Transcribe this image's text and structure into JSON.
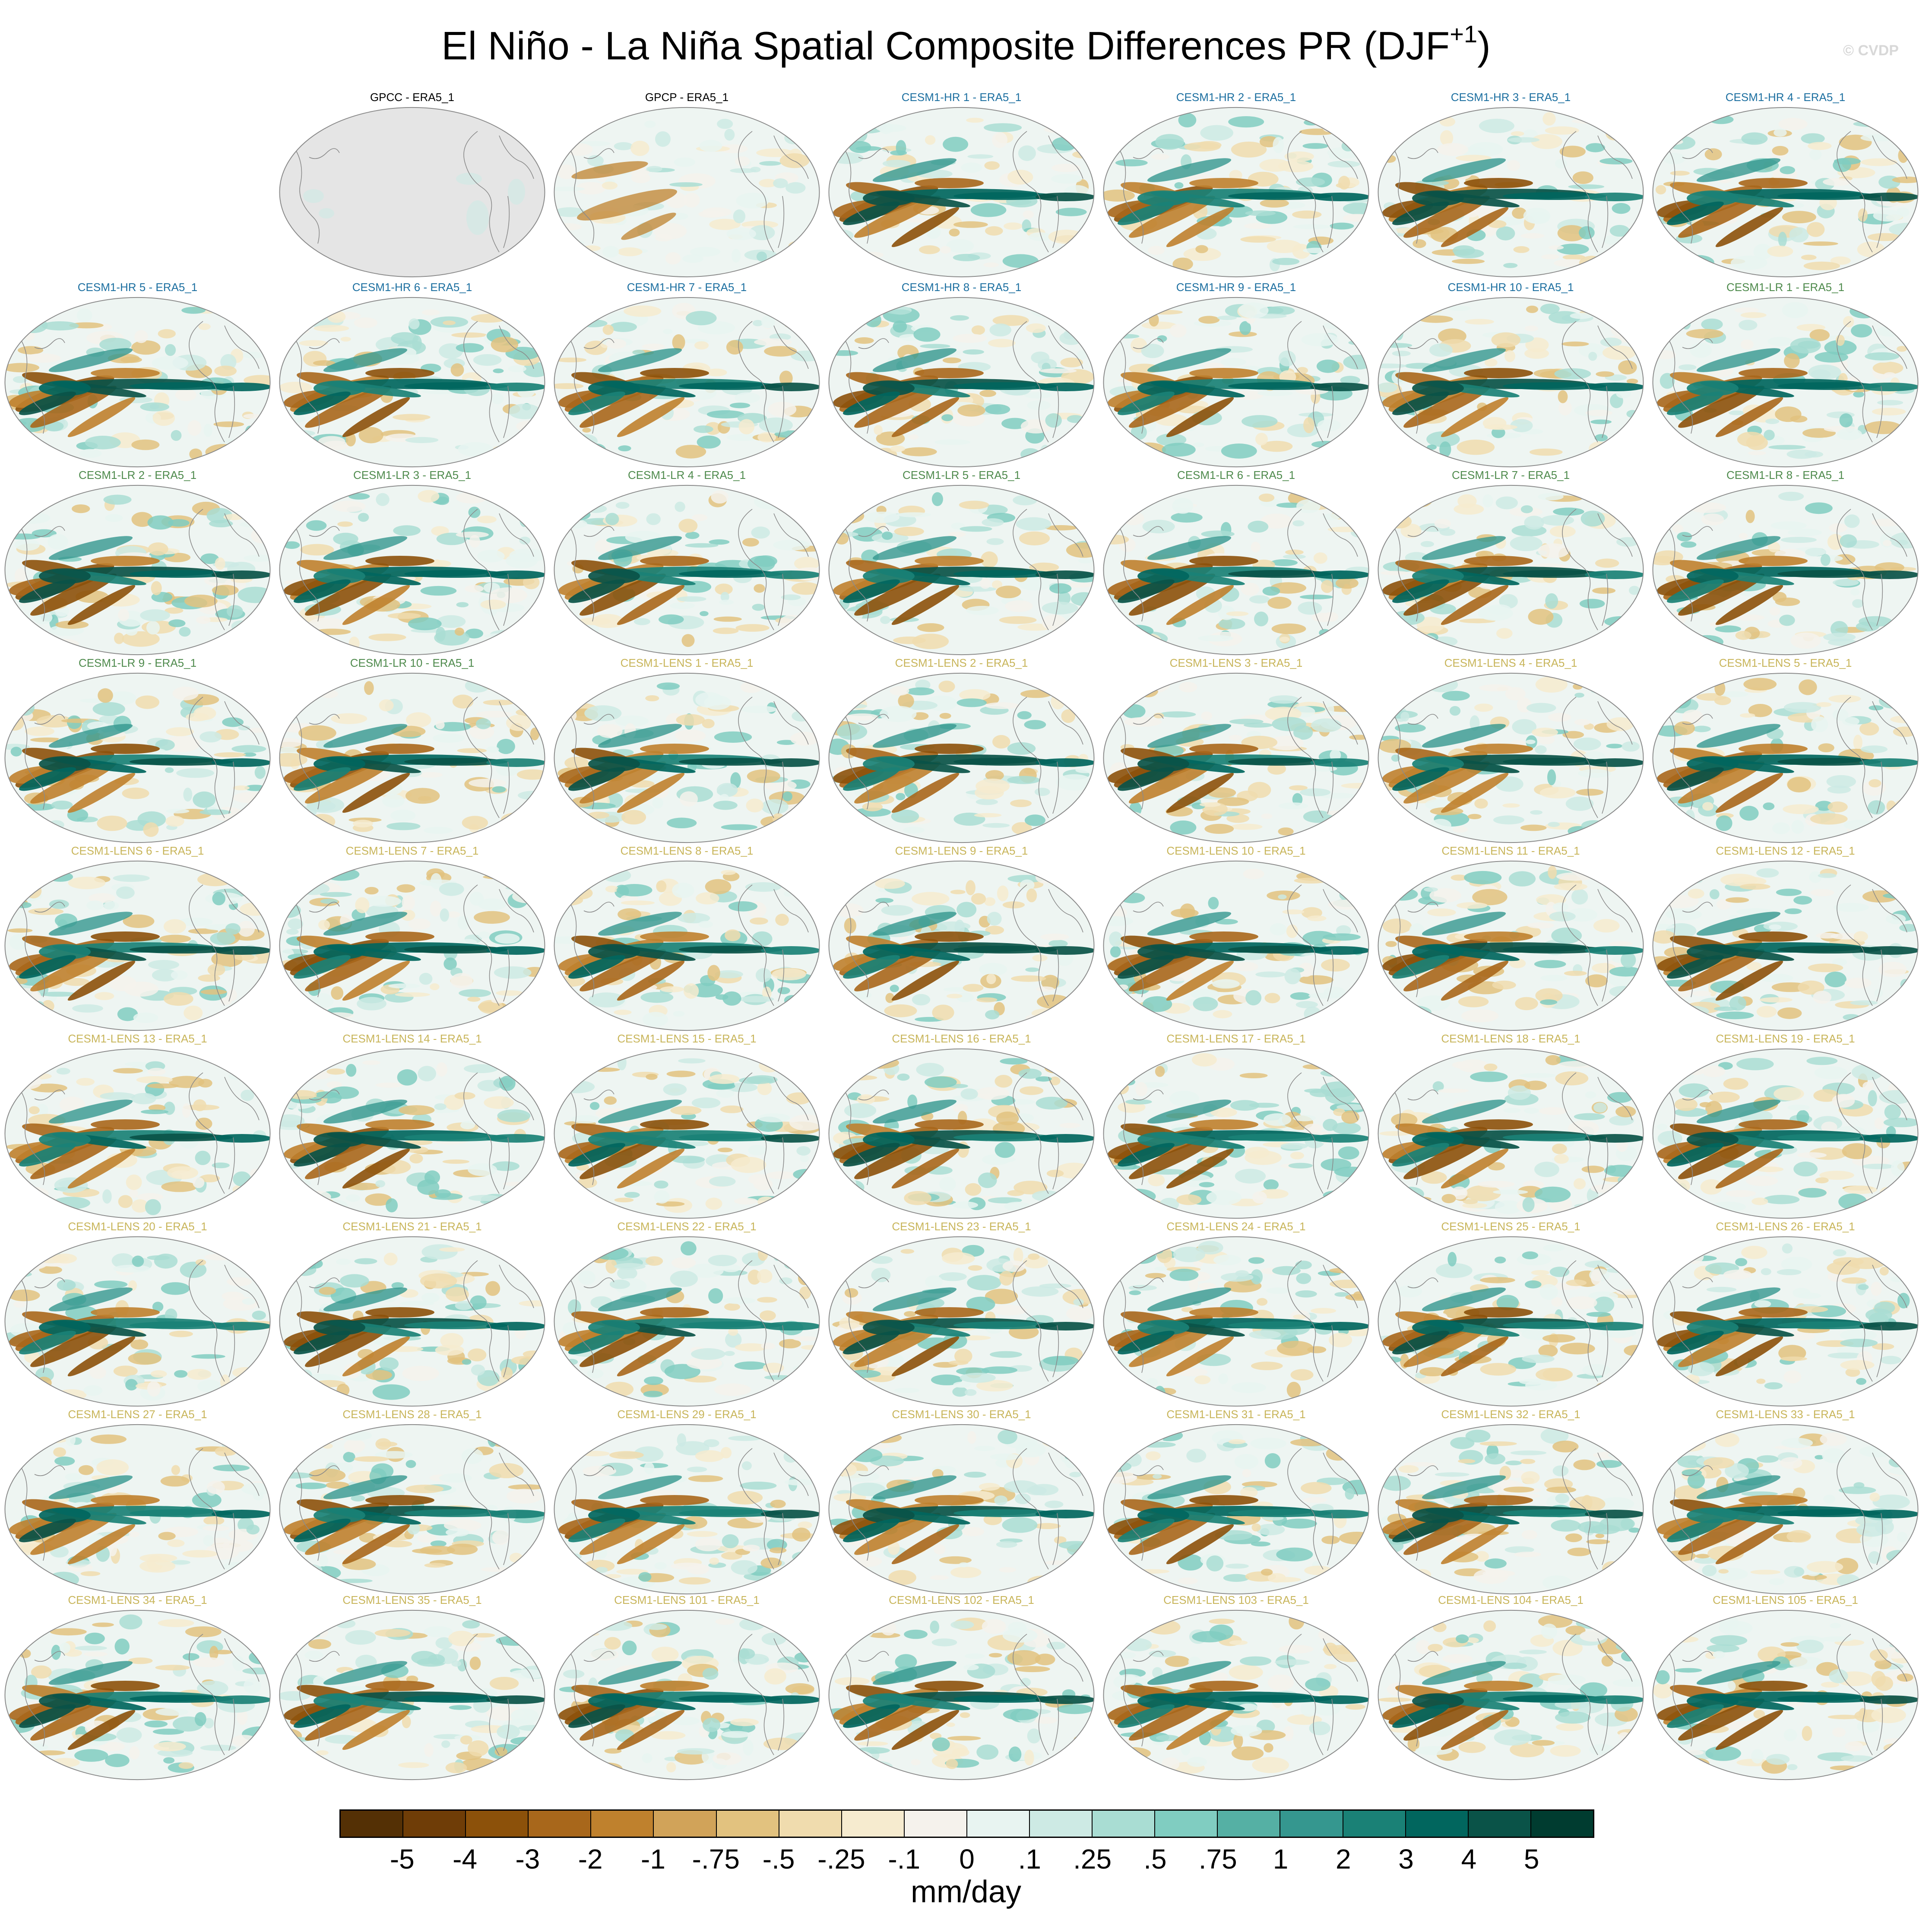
{
  "title": {
    "main": "El Niño - La Niña Spatial Composite Differences PR (DJF",
    "superscript": "+1",
    "close": ")"
  },
  "watermark": "© CVDP",
  "panels": [
    {
      "label": "GPCC - ERA5_1",
      "group": "obs"
    },
    {
      "label": "GPCP - ERA5_1",
      "group": "obs"
    },
    {
      "label": "CESM1-HR 1 - ERA5_1",
      "group": "hr"
    },
    {
      "label": "CESM1-HR 2 - ERA5_1",
      "group": "hr"
    },
    {
      "label": "CESM1-HR 3 - ERA5_1",
      "group": "hr"
    },
    {
      "label": "CESM1-HR 4 - ERA5_1",
      "group": "hr"
    },
    {
      "label": "CESM1-HR 5 - ERA5_1",
      "group": "hr"
    },
    {
      "label": "CESM1-HR 6 - ERA5_1",
      "group": "hr"
    },
    {
      "label": "CESM1-HR 7 - ERA5_1",
      "group": "hr"
    },
    {
      "label": "CESM1-HR 8 - ERA5_1",
      "group": "hr"
    },
    {
      "label": "CESM1-HR 9 - ERA5_1",
      "group": "hr"
    },
    {
      "label": "CESM1-HR 10 - ERA5_1",
      "group": "hr"
    },
    {
      "label": "CESM1-LR 1 - ERA5_1",
      "group": "lr"
    },
    {
      "label": "CESM1-LR 2 - ERA5_1",
      "group": "lr"
    },
    {
      "label": "CESM1-LR 3 - ERA5_1",
      "group": "lr"
    },
    {
      "label": "CESM1-LR 4 - ERA5_1",
      "group": "lr"
    },
    {
      "label": "CESM1-LR 5 - ERA5_1",
      "group": "lr"
    },
    {
      "label": "CESM1-LR 6 - ERA5_1",
      "group": "lr"
    },
    {
      "label": "CESM1-LR 7 - ERA5_1",
      "group": "lr"
    },
    {
      "label": "CESM1-LR 8 - ERA5_1",
      "group": "lr"
    },
    {
      "label": "CESM1-LR 9 - ERA5_1",
      "group": "lr"
    },
    {
      "label": "CESM1-LR 10 - ERA5_1",
      "group": "lr"
    },
    {
      "label": "CESM1-LENS 1 - ERA5_1",
      "group": "lens"
    },
    {
      "label": "CESM1-LENS 2 - ERA5_1",
      "group": "lens"
    },
    {
      "label": "CESM1-LENS 3 - ERA5_1",
      "group": "lens"
    },
    {
      "label": "CESM1-LENS 4 - ERA5_1",
      "group": "lens"
    },
    {
      "label": "CESM1-LENS 5 - ERA5_1",
      "group": "lens"
    },
    {
      "label": "CESM1-LENS 6 - ERA5_1",
      "group": "lens"
    },
    {
      "label": "CESM1-LENS 7 - ERA5_1",
      "group": "lens"
    },
    {
      "label": "CESM1-LENS 8 - ERA5_1",
      "group": "lens"
    },
    {
      "label": "CESM1-LENS 9 - ERA5_1",
      "group": "lens"
    },
    {
      "label": "CESM1-LENS 10 - ERA5_1",
      "group": "lens"
    },
    {
      "label": "CESM1-LENS 11 - ERA5_1",
      "group": "lens"
    },
    {
      "label": "CESM1-LENS 12 - ERA5_1",
      "group": "lens"
    },
    {
      "label": "CESM1-LENS 13 - ERA5_1",
      "group": "lens"
    },
    {
      "label": "CESM1-LENS 14 - ERA5_1",
      "group": "lens"
    },
    {
      "label": "CESM1-LENS 15 - ERA5_1",
      "group": "lens"
    },
    {
      "label": "CESM1-LENS 16 - ERA5_1",
      "group": "lens"
    },
    {
      "label": "CESM1-LENS 17 - ERA5_1",
      "group": "lens"
    },
    {
      "label": "CESM1-LENS 18 - ERA5_1",
      "group": "lens"
    },
    {
      "label": "CESM1-LENS 19 - ERA5_1",
      "group": "lens"
    },
    {
      "label": "CESM1-LENS 20 - ERA5_1",
      "group": "lens"
    },
    {
      "label": "CESM1-LENS 21 - ERA5_1",
      "group": "lens"
    },
    {
      "label": "CESM1-LENS 22 - ERA5_1",
      "group": "lens"
    },
    {
      "label": "CESM1-LENS 23 - ERA5_1",
      "group": "lens"
    },
    {
      "label": "CESM1-LENS 24 - ERA5_1",
      "group": "lens"
    },
    {
      "label": "CESM1-LENS 25 - ERA5_1",
      "group": "lens"
    },
    {
      "label": "CESM1-LENS 26 - ERA5_1",
      "group": "lens"
    },
    {
      "label": "CESM1-LENS 27 - ERA5_1",
      "group": "lens"
    },
    {
      "label": "CESM1-LENS 28 - ERA5_1",
      "group": "lens"
    },
    {
      "label": "CESM1-LENS 29 - ERA5_1",
      "group": "lens"
    },
    {
      "label": "CESM1-LENS 30 - ERA5_1",
      "group": "lens"
    },
    {
      "label": "CESM1-LENS 31 - ERA5_1",
      "group": "lens"
    },
    {
      "label": "CESM1-LENS 32 - ERA5_1",
      "group": "lens"
    },
    {
      "label": "CESM1-LENS 33 - ERA5_1",
      "group": "lens"
    },
    {
      "label": "CESM1-LENS 34 - ERA5_1",
      "group": "lens"
    },
    {
      "label": "CESM1-LENS 35 - ERA5_1",
      "group": "lens"
    },
    {
      "label": "CESM1-LENS 101 - ERA5_1",
      "group": "lens"
    },
    {
      "label": "CESM1-LENS 102 - ERA5_1",
      "group": "lens"
    },
    {
      "label": "CESM1-LENS 103 - ERA5_1",
      "group": "lens"
    },
    {
      "label": "CESM1-LENS 104 - ERA5_1",
      "group": "lens"
    },
    {
      "label": "CESM1-LENS 105 - ERA5_1",
      "group": "lens"
    }
  ],
  "colorbar": {
    "labels": [
      "-5",
      "-4",
      "-3",
      "-2",
      "-1",
      "-.75",
      "-.5",
      "-.25",
      "-.1",
      "0",
      ".1",
      ".25",
      ".5",
      ".75",
      "1",
      "2",
      "3",
      "4",
      "5"
    ],
    "colors": [
      "#543005",
      "#6f3d07",
      "#8c510a",
      "#a8671b",
      "#bf812d",
      "#d1a359",
      "#e2c27f",
      "#f0dcae",
      "#f6ebcf",
      "#f5f2ec",
      "#e8f4f1",
      "#cdeae4",
      "#a9ddd3",
      "#80cdc1",
      "#55b0a4",
      "#35978f",
      "#1a8176",
      "#01665e",
      "#0a5348",
      "#003c30"
    ],
    "units": "mm/day"
  },
  "map_colors": {
    "ocean_neutral": "#eef5f2",
    "land_missing": "#e5e5e5",
    "dry": "#9a5d17",
    "wet": "#0f7a6d",
    "coast": "#8a8a8a"
  }
}
